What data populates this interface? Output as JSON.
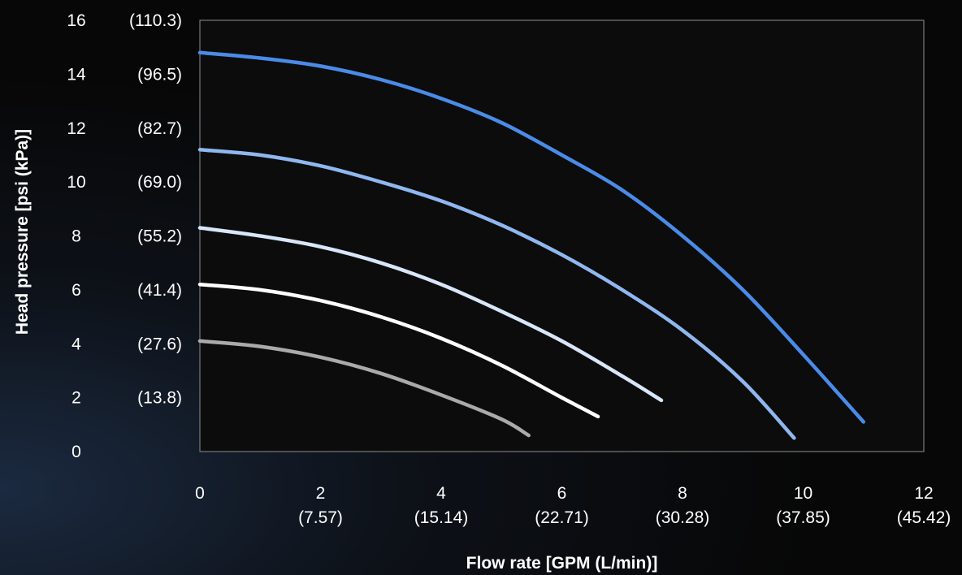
{
  "chart_data": {
    "type": "line",
    "title": "",
    "xlabel": "Flow rate [GPM (L/min)]",
    "ylabel": "Head pressure [psi (kPa)]",
    "xlim": [
      0,
      12
    ],
    "ylim": [
      0,
      16
    ],
    "grid": false,
    "x_ticks": [
      {
        "value": 0,
        "label": "0",
        "sublabel": ""
      },
      {
        "value": 2,
        "label": "2",
        "sublabel": "(7.57)"
      },
      {
        "value": 4,
        "label": "4",
        "sublabel": "(15.14)"
      },
      {
        "value": 6,
        "label": "6",
        "sublabel": "(22.71)"
      },
      {
        "value": 8,
        "label": "8",
        "sublabel": "(30.28)"
      },
      {
        "value": 10,
        "label": "10",
        "sublabel": "(37.85)"
      },
      {
        "value": 12,
        "label": "12",
        "sublabel": "(45.42)"
      }
    ],
    "y_ticks": [
      {
        "value": 0,
        "label": "0",
        "sublabel": ""
      },
      {
        "value": 2,
        "label": "2",
        "sublabel": "(13.8)"
      },
      {
        "value": 4,
        "label": "4",
        "sublabel": "(27.6)"
      },
      {
        "value": 6,
        "label": "6",
        "sublabel": "(41.4)"
      },
      {
        "value": 8,
        "label": "8",
        "sublabel": "(55.2)"
      },
      {
        "value": 10,
        "label": "10",
        "sublabel": "(69.0)"
      },
      {
        "value": 12,
        "label": "12",
        "sublabel": "(82.7)"
      },
      {
        "value": 14,
        "label": "14",
        "sublabel": "(96.5)"
      },
      {
        "value": 16,
        "label": "16",
        "sublabel": "(110.3)"
      }
    ],
    "series": [
      {
        "color": "#aaaaaa",
        "x": [
          0,
          1,
          2,
          3,
          4,
          5,
          5.45
        ],
        "y": [
          4.1,
          3.9,
          3.5,
          2.9,
          2.1,
          1.2,
          0.6
        ]
      },
      {
        "color": "#ffffff",
        "x": [
          0,
          1,
          2,
          3,
          4,
          5,
          6,
          6.6
        ],
        "y": [
          6.2,
          6.0,
          5.6,
          5.0,
          4.2,
          3.2,
          2.0,
          1.3
        ]
      },
      {
        "color": "#d8e6fa",
        "x": [
          0,
          1,
          2,
          3,
          4,
          5,
          6,
          7,
          7.65
        ],
        "y": [
          8.3,
          8.0,
          7.6,
          7.0,
          6.2,
          5.2,
          4.1,
          2.8,
          1.9
        ]
      },
      {
        "color": "#8fb7f0",
        "x": [
          0,
          1,
          2,
          3,
          4,
          5,
          6,
          7,
          8,
          9,
          9.85
        ],
        "y": [
          11.2,
          11.0,
          10.6,
          10.0,
          9.3,
          8.4,
          7.3,
          6.0,
          4.5,
          2.6,
          0.5
        ]
      },
      {
        "color": "#4a8be8",
        "x": [
          0,
          1,
          2,
          3,
          4,
          5,
          6,
          7,
          8,
          9,
          10,
          11
        ],
        "y": [
          14.8,
          14.6,
          14.3,
          13.8,
          13.1,
          12.2,
          11.0,
          9.7,
          8.0,
          6.0,
          3.6,
          1.1
        ]
      }
    ],
    "colors": {
      "frame": "#7a7a7a",
      "plot_bg": "#0c0c0c",
      "text": "#ffffff"
    }
  }
}
